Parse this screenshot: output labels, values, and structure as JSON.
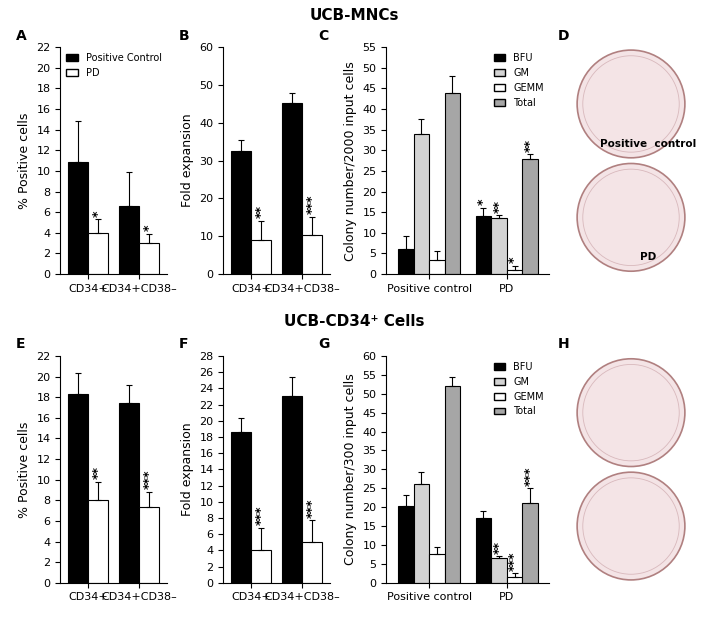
{
  "section_titles": [
    "UCB-MNCs",
    "UCB-CD34⁺ Cells"
  ],
  "chart_data": [
    {
      "type": "bar",
      "title": "A",
      "y_label": "% Positive cells",
      "categories": [
        "CD34+",
        "CD34+CD38–"
      ],
      "series": [
        {
          "name": "Positive Control",
          "color": "#000000",
          "values": [
            10.9,
            6.6
          ],
          "errors": [
            3.9,
            3.3
          ],
          "significance": [
            null,
            null
          ]
        },
        {
          "name": "PD",
          "color": "#ffffff",
          "values": [
            4.0,
            3.0
          ],
          "errors": [
            1.3,
            0.9
          ],
          "significance": [
            "*",
            "*"
          ]
        }
      ],
      "ylim": [
        0,
        22
      ],
      "yticks": [
        0,
        2,
        4,
        6,
        8,
        10,
        12,
        14,
        16,
        18,
        20,
        22
      ],
      "legend": "upper left"
    },
    {
      "type": "bar",
      "title": "B",
      "y_label": "Fold expansion",
      "categories": [
        "CD34+",
        "CD34+CD38–"
      ],
      "series": [
        {
          "name": "Positive Control",
          "color": "#000000",
          "values": [
            32.5,
            45.2
          ],
          "errors": [
            3.0,
            2.7
          ],
          "significance": [
            null,
            null
          ]
        },
        {
          "name": "PD",
          "color": "#ffffff",
          "values": [
            9.0,
            10.2
          ],
          "errors": [
            5.0,
            5.0
          ],
          "significance": [
            "**",
            "***"
          ]
        }
      ],
      "ylim": [
        0,
        60
      ],
      "yticks": [
        0,
        10,
        20,
        30,
        40,
        50,
        60
      ]
    },
    {
      "type": "bar",
      "title": "C",
      "y_label": "Colony number/2000 input cells",
      "categories": [
        "Positive control",
        "PD"
      ],
      "series": [
        {
          "name": "BFU",
          "color": "#000000",
          "values": [
            6.0,
            14.0
          ],
          "errors": [
            3.3,
            2.0
          ],
          "significance": [
            null,
            "*"
          ]
        },
        {
          "name": "GM",
          "color": "#d3d3d3",
          "values": [
            34.0,
            13.5
          ],
          "errors": [
            3.5,
            0.7
          ],
          "significance": [
            null,
            "**"
          ]
        },
        {
          "name": "GEMM",
          "color": "#ffffff",
          "values": [
            3.5,
            1.0
          ],
          "errors": [
            2.0,
            1.0
          ],
          "significance": [
            null,
            "*"
          ]
        },
        {
          "name": "Total",
          "color": "#a6a6a6",
          "values": [
            44.0,
            28.0
          ],
          "errors": [
            4.0,
            1.0
          ],
          "significance": [
            null,
            "**"
          ]
        }
      ],
      "ylim": [
        0,
        55
      ],
      "yticks": [
        0,
        5,
        10,
        15,
        20,
        25,
        30,
        35,
        40,
        45,
        50,
        55
      ],
      "legend": "upper right"
    },
    {
      "type": "image",
      "title": "D",
      "annotations": [
        "Positive  control",
        "PD"
      ]
    },
    {
      "type": "bar",
      "title": "E",
      "y_label": "% Positive cells",
      "categories": [
        "CD34+",
        "CD34+CD38–"
      ],
      "series": [
        {
          "name": "Positive Control",
          "color": "#000000",
          "values": [
            18.3,
            17.4
          ],
          "errors": [
            2.0,
            1.8
          ],
          "significance": [
            null,
            null
          ]
        },
        {
          "name": "PD",
          "color": "#ffffff",
          "values": [
            8.0,
            7.3
          ],
          "errors": [
            1.8,
            1.5
          ],
          "significance": [
            "**",
            "***"
          ]
        }
      ],
      "ylim": [
        0,
        22
      ],
      "yticks": [
        0,
        2,
        4,
        6,
        8,
        10,
        12,
        14,
        16,
        18,
        20,
        22
      ]
    },
    {
      "type": "bar",
      "title": "F",
      "y_label": "Fold expansion",
      "categories": [
        "CD34+",
        "CD34+CD38–"
      ],
      "series": [
        {
          "name": "Positive Control",
          "color": "#000000",
          "values": [
            18.6,
            23.1
          ],
          "errors": [
            1.7,
            2.3
          ],
          "significance": [
            null,
            null
          ]
        },
        {
          "name": "PD",
          "color": "#ffffff",
          "values": [
            4.0,
            5.0
          ],
          "errors": [
            2.8,
            2.7
          ],
          "significance": [
            "***",
            "***"
          ]
        }
      ],
      "ylim": [
        0,
        28
      ],
      "yticks": [
        0,
        2,
        4,
        6,
        8,
        10,
        12,
        14,
        16,
        18,
        20,
        22,
        24,
        26,
        28
      ]
    },
    {
      "type": "bar",
      "title": "G",
      "y_label": "Colony number/300 input cells",
      "categories": [
        "Positive control",
        "PD"
      ],
      "series": [
        {
          "name": "BFU",
          "color": "#000000",
          "values": [
            20.2,
            17.0
          ],
          "errors": [
            3.0,
            2.0
          ],
          "significance": [
            null,
            null
          ]
        },
        {
          "name": "GM",
          "color": "#d3d3d3",
          "values": [
            26.0,
            6.5
          ],
          "errors": [
            3.3,
            0.5
          ],
          "significance": [
            null,
            "**"
          ]
        },
        {
          "name": "GEMM",
          "color": "#ffffff",
          "values": [
            7.5,
            1.5
          ],
          "errors": [
            2.0,
            1.0
          ],
          "significance": [
            null,
            "***"
          ]
        },
        {
          "name": "Total",
          "color": "#a6a6a6",
          "values": [
            52.0,
            21.0
          ],
          "errors": [
            2.5,
            4.0
          ],
          "significance": [
            null,
            "***"
          ]
        }
      ],
      "ylim": [
        0,
        60
      ],
      "yticks": [
        0,
        5,
        10,
        15,
        20,
        25,
        30,
        35,
        40,
        45,
        50,
        55,
        60
      ],
      "legend": "upper right"
    },
    {
      "type": "image",
      "title": "H"
    }
  ]
}
